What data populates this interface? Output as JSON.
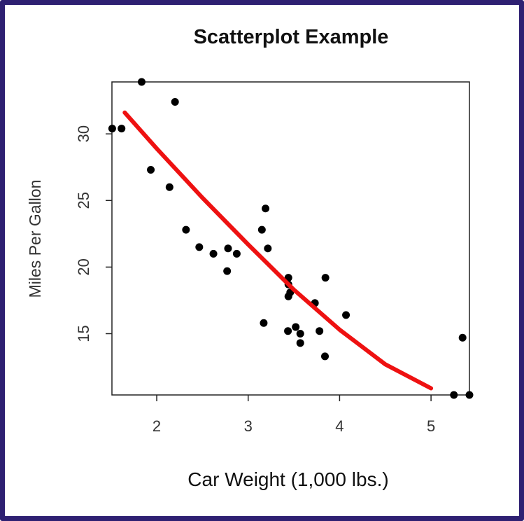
{
  "chart_data": {
    "type": "scatter",
    "title": "Scatterplot Example",
    "xlabel": "Car Weight (1,000 lbs.)",
    "ylabel": "Miles Per Gallon",
    "xlim": [
      1.51,
      5.42
    ],
    "ylim": [
      10.4,
      33.9
    ],
    "x_ticks": [
      2,
      3,
      4,
      5
    ],
    "x_tick_labels": [
      "2",
      "3",
      "4",
      "5"
    ],
    "y_ticks": [
      15,
      20,
      25,
      30
    ],
    "y_tick_labels": [
      "15",
      "20",
      "25",
      "30"
    ],
    "grid": false,
    "legend": "none",
    "point_color": "#000000",
    "fit_color": "#ee1111",
    "points": [
      {
        "x": 2.62,
        "y": 21.0
      },
      {
        "x": 2.875,
        "y": 21.0
      },
      {
        "x": 2.32,
        "y": 22.8
      },
      {
        "x": 3.215,
        "y": 21.4
      },
      {
        "x": 3.44,
        "y": 18.7
      },
      {
        "x": 3.46,
        "y": 18.1
      },
      {
        "x": 3.57,
        "y": 14.3
      },
      {
        "x": 3.19,
        "y": 24.4
      },
      {
        "x": 3.15,
        "y": 22.8
      },
      {
        "x": 3.44,
        "y": 19.2
      },
      {
        "x": 3.44,
        "y": 17.8
      },
      {
        "x": 4.07,
        "y": 16.4
      },
      {
        "x": 3.73,
        "y": 17.3
      },
      {
        "x": 3.78,
        "y": 15.2
      },
      {
        "x": 5.25,
        "y": 10.4
      },
      {
        "x": 5.424,
        "y": 10.4
      },
      {
        "x": 5.345,
        "y": 14.7
      },
      {
        "x": 2.2,
        "y": 32.4
      },
      {
        "x": 1.615,
        "y": 30.4
      },
      {
        "x": 1.835,
        "y": 33.9
      },
      {
        "x": 2.465,
        "y": 21.5
      },
      {
        "x": 3.52,
        "y": 15.5
      },
      {
        "x": 3.435,
        "y": 15.2
      },
      {
        "x": 3.84,
        "y": 13.3
      },
      {
        "x": 3.845,
        "y": 19.2
      },
      {
        "x": 1.935,
        "y": 27.3
      },
      {
        "x": 2.14,
        "y": 26.0
      },
      {
        "x": 1.513,
        "y": 30.4
      },
      {
        "x": 3.17,
        "y": 15.8
      },
      {
        "x": 2.77,
        "y": 19.7
      },
      {
        "x": 3.57,
        "y": 15.0
      },
      {
        "x": 2.78,
        "y": 21.4
      }
    ],
    "fit_line": {
      "x": [
        1.65,
        2.0,
        2.5,
        3.0,
        3.5,
        4.0,
        4.5,
        5.0
      ],
      "y": [
        31.6,
        28.9,
        25.2,
        21.7,
        18.3,
        15.3,
        12.7,
        10.9
      ]
    }
  }
}
